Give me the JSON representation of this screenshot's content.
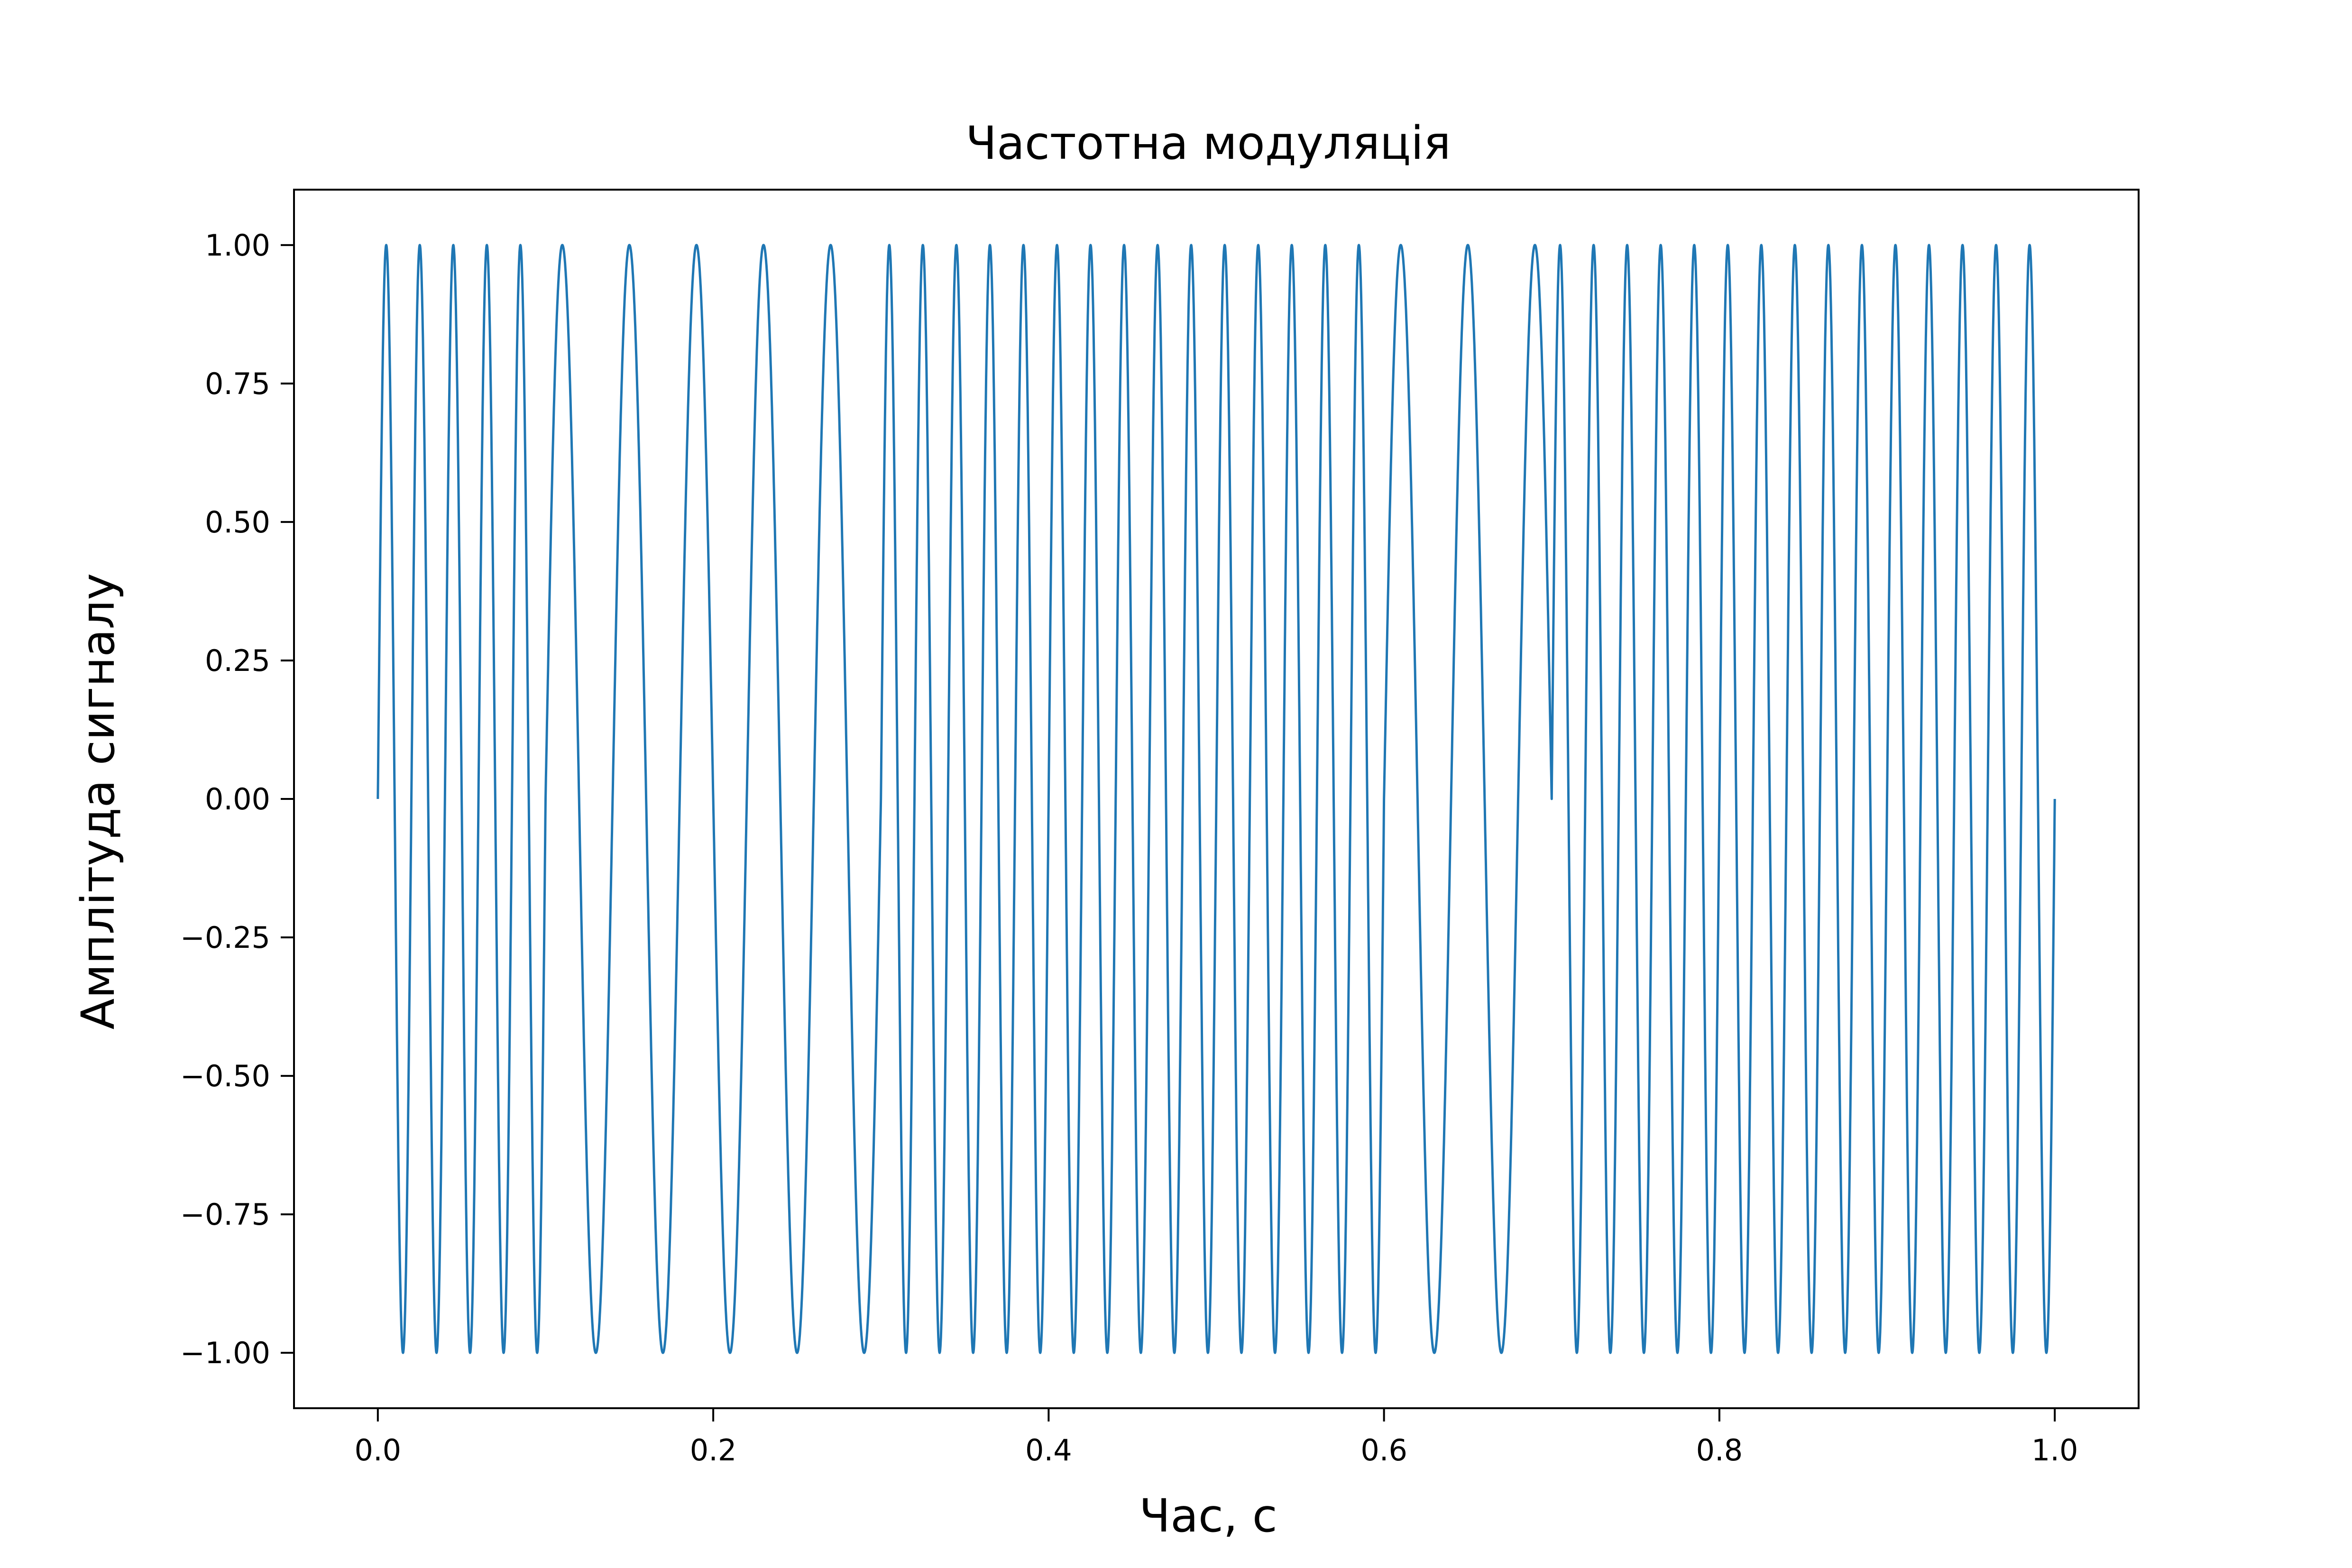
{
  "chart_data": {
    "type": "line",
    "title": "Частотна модуляція",
    "xlabel": "Час, с",
    "ylabel": "Амплітуда сигналу",
    "xlim": [
      -0.05,
      1.05
    ],
    "ylim": [
      -1.1,
      1.1
    ],
    "grid": false,
    "x_ticks": [
      {
        "value": 0.0,
        "label": "0.0"
      },
      {
        "value": 0.2,
        "label": "0.2"
      },
      {
        "value": 0.4,
        "label": "0.4"
      },
      {
        "value": 0.6,
        "label": "0.6"
      },
      {
        "value": 0.8,
        "label": "0.8"
      },
      {
        "value": 1.0,
        "label": "1.0"
      }
    ],
    "y_ticks": [
      {
        "value": 1.0,
        "label": "1.00"
      },
      {
        "value": 0.75,
        "label": "0.75"
      },
      {
        "value": 0.5,
        "label": "0.50"
      },
      {
        "value": 0.25,
        "label": "0.25"
      },
      {
        "value": 0.0,
        "label": "0.00"
      },
      {
        "value": -0.25,
        "label": "−0.25"
      },
      {
        "value": -0.5,
        "label": "−0.50"
      },
      {
        "value": -0.75,
        "label": "−0.75"
      },
      {
        "value": -1.0,
        "label": "−1.00"
      }
    ],
    "series": [
      {
        "color": "#1f77b4",
        "x_range": [
          0,
          1
        ],
        "signal": "sin(2π·f·t)",
        "segments": [
          {
            "start": 0.0,
            "end": 0.1,
            "frequency_hz": 50
          },
          {
            "start": 0.1,
            "end": 0.3,
            "frequency_hz": 25
          },
          {
            "start": 0.3,
            "end": 0.6,
            "frequency_hz": 50
          },
          {
            "start": 0.6,
            "end": 0.7,
            "frequency_hz": 25
          },
          {
            "start": 0.7,
            "end": 1.0,
            "frequency_hz": 50
          }
        ]
      }
    ]
  }
}
